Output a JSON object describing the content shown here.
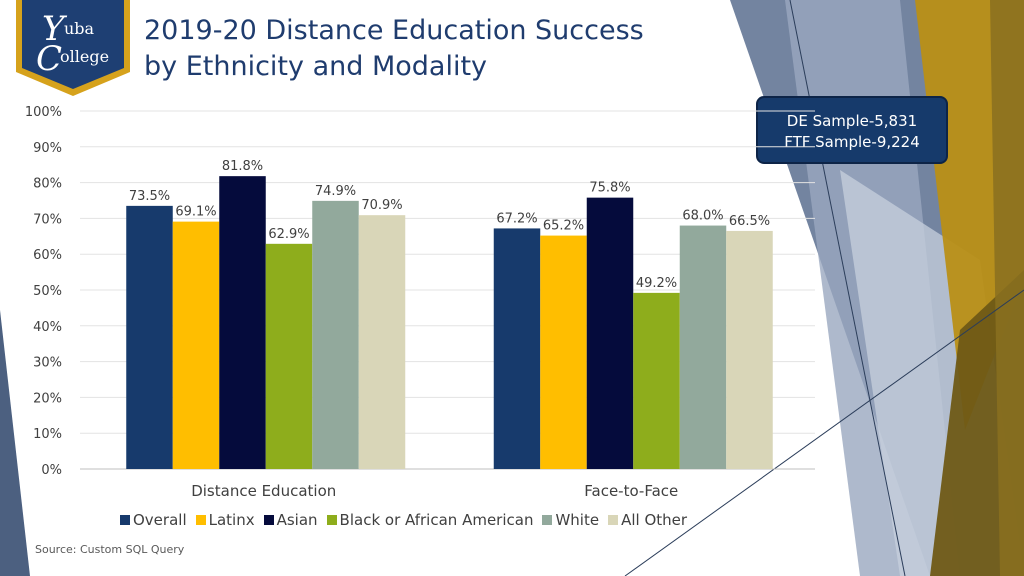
{
  "slide": {
    "title_line1": "2019-20 Distance Education Success",
    "title_line2": "by Ethnicity and Modality",
    "source": "Source: Custom SQL Query",
    "logo_text": "Yuba College"
  },
  "sample_box": {
    "line1": "DE Sample-5,831",
    "line2": "FTF Sample-9,224"
  },
  "colors": {
    "title": "#1f3c6e",
    "navy": "#1e3f73",
    "gold": "#d6a21c"
  },
  "chart_data": {
    "type": "bar",
    "categories": [
      "Distance Education",
      "Face-to-Face"
    ],
    "series": [
      {
        "name": "Overall",
        "values": [
          73.5,
          67.2
        ],
        "labels": [
          "73.5%",
          "67.2%"
        ],
        "color": "#173a6c"
      },
      {
        "name": "Latinx",
        "values": [
          69.1,
          65.2
        ],
        "labels": [
          "69.1%",
          "65.2%"
        ],
        "color": "#ffbe00"
      },
      {
        "name": "Asian",
        "values": [
          81.8,
          75.8
        ],
        "labels": [
          "81.8%",
          "75.8%"
        ],
        "color": "#050b3c"
      },
      {
        "name": "Black or African American",
        "values": [
          62.9,
          49.2
        ],
        "labels": [
          "62.9%",
          "49.2%"
        ],
        "color": "#8ead1c"
      },
      {
        "name": "White",
        "values": [
          74.9,
          68.0
        ],
        "labels": [
          "74.9%",
          "68.0%"
        ],
        "color": "#92a99c"
      },
      {
        "name": "All Other",
        "values": [
          70.9,
          66.5
        ],
        "labels": [
          "70.9%",
          "66.5%"
        ],
        "color": "#d9d6b8"
      }
    ],
    "y_ticks": [
      "0%",
      "10%",
      "20%",
      "30%",
      "40%",
      "50%",
      "60%",
      "70%",
      "80%",
      "90%",
      "100%"
    ],
    "ylim": [
      0,
      100
    ],
    "grid": true,
    "legend_position": "bottom"
  }
}
